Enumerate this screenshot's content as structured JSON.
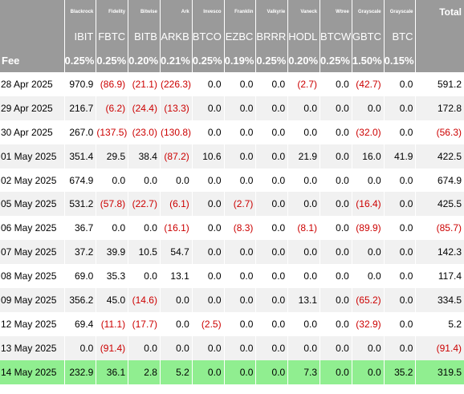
{
  "columns": [
    {
      "issuer": "Blackrock",
      "ticker": "IBIT",
      "fee": "0.25%"
    },
    {
      "issuer": "Fidelity",
      "ticker": "FBTC",
      "fee": "0.25%"
    },
    {
      "issuer": "Bitwise",
      "ticker": "BITB",
      "fee": "0.20%"
    },
    {
      "issuer": "Ark",
      "ticker": "ARKB",
      "fee": "0.21%"
    },
    {
      "issuer": "Invesco",
      "ticker": "BTCO",
      "fee": "0.25%"
    },
    {
      "issuer": "Franklin",
      "ticker": "EZBC",
      "fee": "0.19%"
    },
    {
      "issuer": "Valkyrie",
      "ticker": "BRRR",
      "fee": "0.25%"
    },
    {
      "issuer": "Vaneck",
      "ticker": "HODL",
      "fee": "0.20%"
    },
    {
      "issuer": "Wtree",
      "ticker": "BTCW",
      "fee": "0.25%"
    },
    {
      "issuer": "Grayscale",
      "ticker": "GBTC",
      "fee": "1.50%"
    },
    {
      "issuer": "Grayscale",
      "ticker": "BTC",
      "fee": "0.15%"
    }
  ],
  "total_label": "Total",
  "fee_label": "Fee",
  "rows": [
    {
      "date": "28 Apr 2025",
      "values": [
        "970.9",
        "(86.9)",
        "(21.1)",
        "(226.3)",
        "0.0",
        "0.0",
        "0.0",
        "(2.7)",
        "0.0",
        "(42.7)",
        "0.0"
      ],
      "total": "591.2"
    },
    {
      "date": "29 Apr 2025",
      "values": [
        "216.7",
        "(6.2)",
        "(24.4)",
        "(13.3)",
        "0.0",
        "0.0",
        "0.0",
        "0.0",
        "0.0",
        "0.0",
        "0.0"
      ],
      "total": "172.8"
    },
    {
      "date": "30 Apr 2025",
      "values": [
        "267.0",
        "(137.5)",
        "(23.0)",
        "(130.8)",
        "0.0",
        "0.0",
        "0.0",
        "0.0",
        "0.0",
        "(32.0)",
        "0.0"
      ],
      "total": "(56.3)"
    },
    {
      "date": "01 May 2025",
      "values": [
        "351.4",
        "29.5",
        "38.4",
        "(87.2)",
        "10.6",
        "0.0",
        "0.0",
        "21.9",
        "0.0",
        "16.0",
        "41.9"
      ],
      "total": "422.5"
    },
    {
      "date": "02 May 2025",
      "values": [
        "674.9",
        "0.0",
        "0.0",
        "0.0",
        "0.0",
        "0.0",
        "0.0",
        "0.0",
        "0.0",
        "0.0",
        "0.0"
      ],
      "total": "674.9"
    },
    {
      "date": "05 May 2025",
      "values": [
        "531.2",
        "(57.8)",
        "(22.7)",
        "(6.1)",
        "0.0",
        "(2.7)",
        "0.0",
        "0.0",
        "0.0",
        "(16.4)",
        "0.0"
      ],
      "total": "425.5"
    },
    {
      "date": "06 May 2025",
      "values": [
        "36.7",
        "0.0",
        "0.0",
        "(16.1)",
        "0.0",
        "(8.3)",
        "0.0",
        "(8.1)",
        "0.0",
        "(89.9)",
        "0.0"
      ],
      "total": "(85.7)"
    },
    {
      "date": "07 May 2025",
      "values": [
        "37.2",
        "39.9",
        "10.5",
        "54.7",
        "0.0",
        "0.0",
        "0.0",
        "0.0",
        "0.0",
        "0.0",
        "0.0"
      ],
      "total": "142.3"
    },
    {
      "date": "08 May 2025",
      "values": [
        "69.0",
        "35.3",
        "0.0",
        "13.1",
        "0.0",
        "0.0",
        "0.0",
        "0.0",
        "0.0",
        "0.0",
        "0.0"
      ],
      "total": "117.4"
    },
    {
      "date": "09 May 2025",
      "values": [
        "356.2",
        "45.0",
        "(14.6)",
        "0.0",
        "0.0",
        "0.0",
        "0.0",
        "13.1",
        "0.0",
        "(65.2)",
        "0.0"
      ],
      "total": "334.5"
    },
    {
      "date": "12 May 2025",
      "values": [
        "69.4",
        "(11.1)",
        "(17.7)",
        "0.0",
        "(2.5)",
        "0.0",
        "0.0",
        "0.0",
        "0.0",
        "(32.9)",
        "0.0"
      ],
      "total": "5.2"
    },
    {
      "date": "13 May 2025",
      "values": [
        "0.0",
        "(91.4)",
        "0.0",
        "0.0",
        "0.0",
        "0.0",
        "0.0",
        "0.0",
        "0.0",
        "0.0",
        "0.0"
      ],
      "total": "(91.4)"
    },
    {
      "date": "14 May 2025",
      "values": [
        "232.9",
        "36.1",
        "2.8",
        "5.2",
        "0.0",
        "0.0",
        "0.0",
        "7.3",
        "0.0",
        "0.0",
        "35.2"
      ],
      "total": "319.5"
    }
  ],
  "colors": {
    "header_bg": "#9a9a9a",
    "negative": "#cc0000",
    "highlight_row": "#90ee90",
    "alt_row": "#f1f1f1"
  },
  "highlight_row_index": 12
}
